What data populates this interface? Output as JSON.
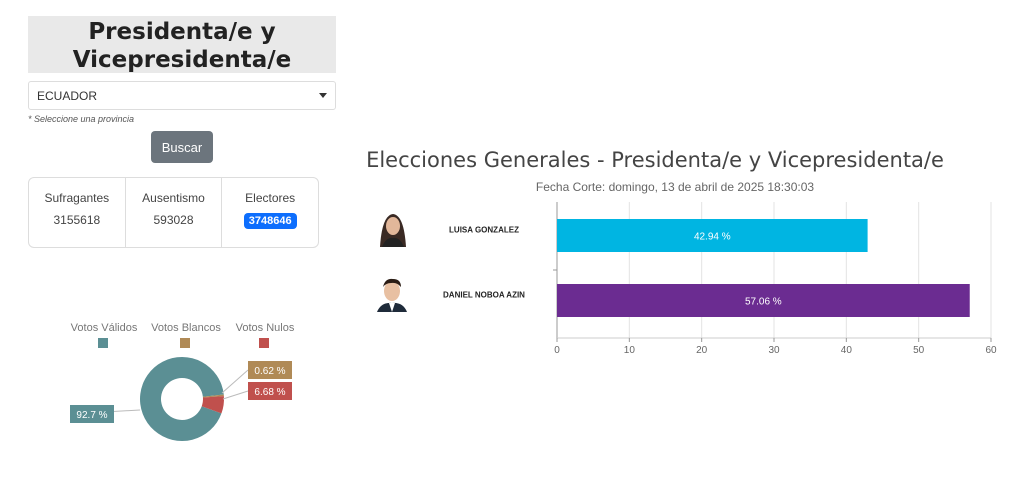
{
  "header": {
    "title": "Presidenta/e y Vicepresidenta/e"
  },
  "filter": {
    "selected": "ECUADOR",
    "hint": "* Seleccione una provincia",
    "button_label": "Buscar"
  },
  "stats": [
    {
      "label": "Sufragantes",
      "value": "3155618"
    },
    {
      "label": "Ausentismo",
      "value": "593028"
    },
    {
      "label": "Electores",
      "value": "3748646"
    }
  ],
  "pie_legend": [
    {
      "label": "Votos Válidos",
      "color": "#5b8f94"
    },
    {
      "label": "Votos Blancos",
      "color": "#b08a56"
    },
    {
      "label": "Votos Nulos",
      "color": "#c0504d"
    }
  ],
  "pie_data": {
    "slices": [
      {
        "name": "Votos Válidos",
        "value": 92.7,
        "label": "92.7 %"
      },
      {
        "name": "Votos Blancos",
        "value": 0.62,
        "label": "0.62 %"
      },
      {
        "name": "Votos Nulos",
        "value": 6.68,
        "label": "6.68 %"
      }
    ]
  },
  "chart_data": {
    "type": "bar",
    "orientation": "horizontal",
    "title": "Elecciones Generales - Presidenta/e y Vicepresidenta/e",
    "subtitle": "Fecha Corte: domingo, 13 de abril de 2025 18:30:03",
    "categories": [
      "LUISA GONZALEZ",
      "DANIEL NOBOA AZIN"
    ],
    "values": [
      42.94,
      57.06
    ],
    "value_labels": [
      "42.94 %",
      "57.06 %"
    ],
    "colors": [
      "#00b5e2",
      "#6b2c91"
    ],
    "xlim": [
      0,
      60
    ],
    "xticks": [
      "0",
      "10",
      "20",
      "30",
      "40",
      "50",
      "60"
    ],
    "grid": true
  }
}
